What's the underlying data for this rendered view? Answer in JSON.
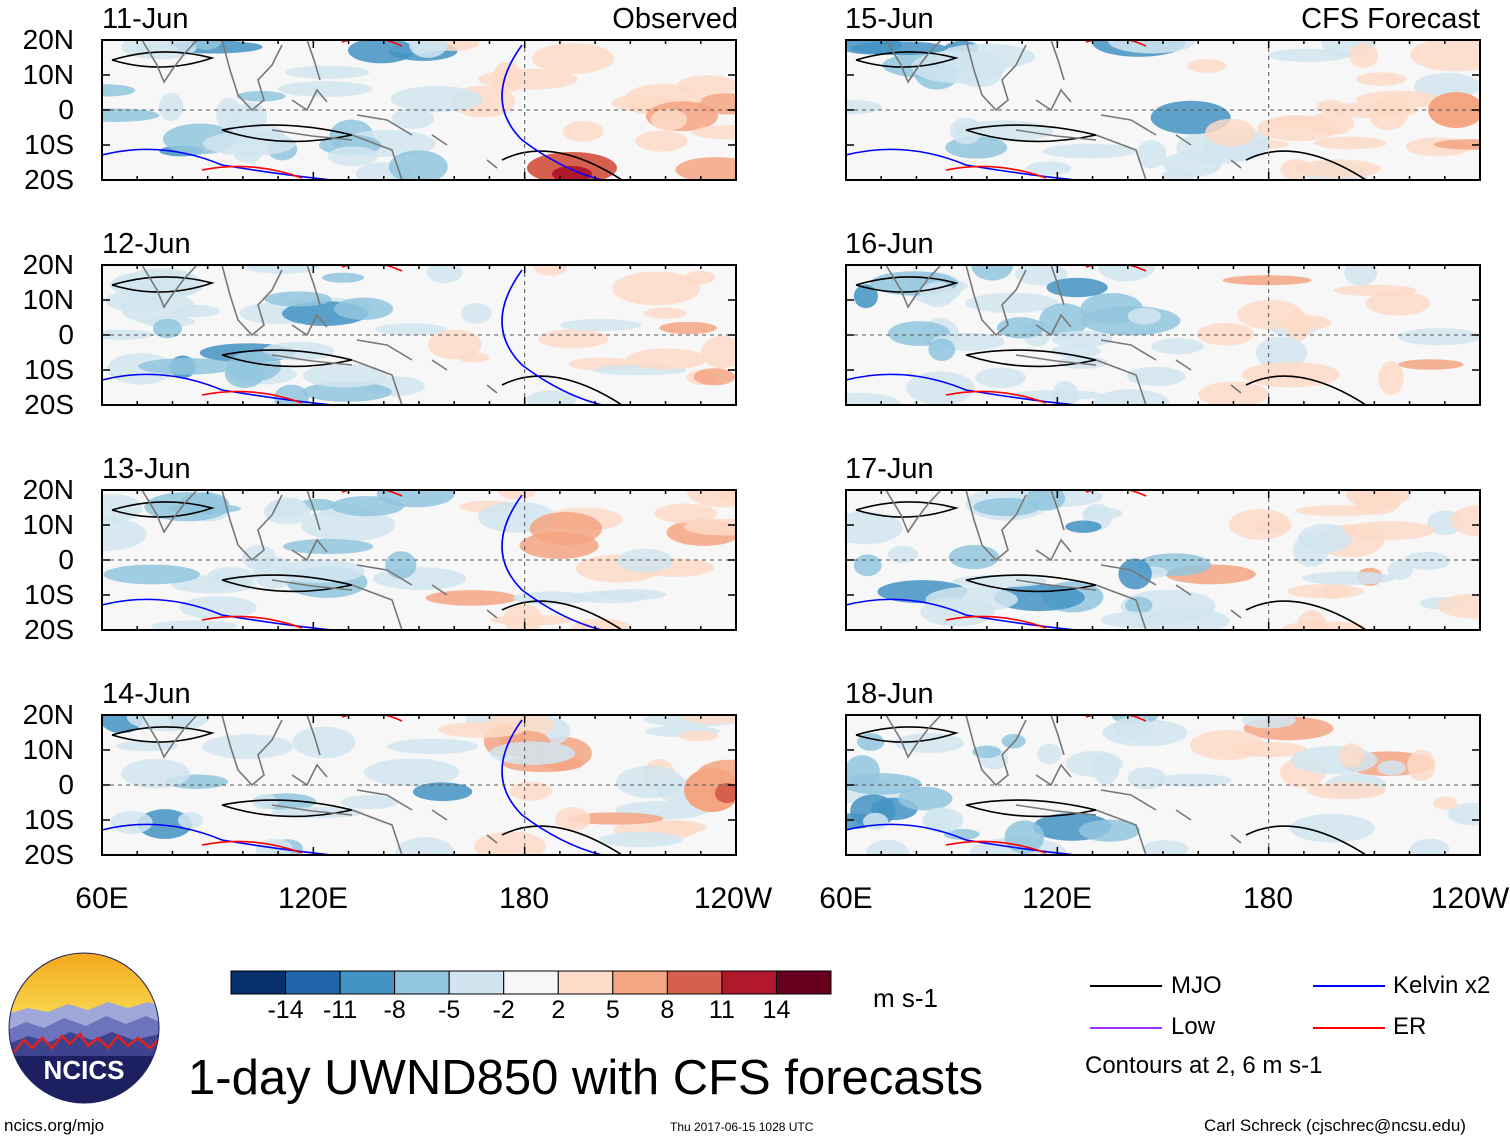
{
  "figure": {
    "title": "1-day UWND850 with CFS forecasts",
    "left_column_label": "Observed",
    "right_column_label": "CFS Forecast"
  },
  "panels": [
    {
      "date": "11-Jun",
      "kind": "observed"
    },
    {
      "date": "12-Jun",
      "kind": "observed"
    },
    {
      "date": "13-Jun",
      "kind": "observed"
    },
    {
      "date": "14-Jun",
      "kind": "observed"
    },
    {
      "date": "15-Jun",
      "kind": "forecast"
    },
    {
      "date": "16-Jun",
      "kind": "forecast"
    },
    {
      "date": "17-Jun",
      "kind": "forecast"
    },
    {
      "date": "18-Jun",
      "kind": "forecast"
    }
  ],
  "axes": {
    "lat_ticks": [
      "20N",
      "10N",
      "0",
      "10S",
      "20S"
    ],
    "lon_ticks": [
      "60E",
      "120E",
      "180",
      "120W"
    ]
  },
  "colorbar": {
    "units": "m s-1",
    "labels": [
      "-14",
      "-11",
      "-8",
      "-5",
      "-2",
      "2",
      "5",
      "8",
      "11",
      "14"
    ],
    "colors": [
      "#08306b",
      "#2166ac",
      "#4393c3",
      "#92c5de",
      "#d1e5f0",
      "#f7f7f7",
      "#fddbc7",
      "#f4a582",
      "#d6604d",
      "#b2182b",
      "#67001f"
    ]
  },
  "legend": {
    "items": [
      {
        "label": "MJO",
        "color": "#000000"
      },
      {
        "label": "Kelvin x2",
        "color": "#0000ff"
      },
      {
        "label": "Low",
        "color": "#9b30ff"
      },
      {
        "label": "ER",
        "color": "#ff0000"
      }
    ],
    "contour_note": "Contours at 2, 6 m s-1"
  },
  "logo": {
    "text": "NCICS"
  },
  "footer": {
    "left": "ncics.org/mjo",
    "center": "Thu 2017-06-15 1028 UTC",
    "right": "Carl Schreck (cjschrec@ncsu.edu)"
  }
}
